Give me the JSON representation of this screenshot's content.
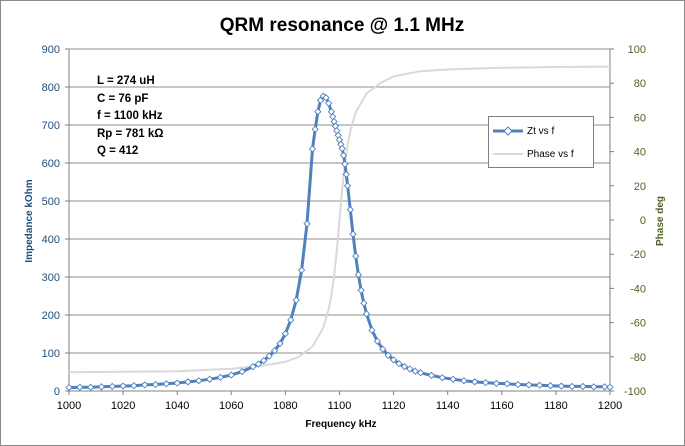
{
  "chart_data": {
    "type": "line",
    "title": "QRM resonance @ 1.1 MHz",
    "xlabel": "Frequency  kHz",
    "ylabel": "Impedance  kOhm",
    "y2label": "Phase  deg",
    "xlim": [
      1000,
      1200
    ],
    "ylim": [
      0,
      900
    ],
    "y2lim": [
      -100,
      100
    ],
    "x_ticks": [
      1000,
      1020,
      1040,
      1060,
      1080,
      1100,
      1120,
      1140,
      1160,
      1180,
      1200
    ],
    "y_ticks": [
      0,
      100,
      200,
      300,
      400,
      500,
      600,
      700,
      800,
      900
    ],
    "y2_ticks": [
      -100,
      -80,
      -60,
      -40,
      -20,
      0,
      20,
      40,
      60,
      80,
      100
    ],
    "grid": "horizontal",
    "legend_position": "right",
    "annotation_lines": [
      "L = 274  uH",
      "C = 76  pF",
      "f =  1100  kHz",
      "Rp = 781  kΩ",
      "Q = 412"
    ],
    "series": [
      {
        "name": "Zt vs f",
        "axis": "left",
        "color": "#4f81bd",
        "marker": "diamond",
        "x": [
          1000,
          1004,
          1008,
          1012,
          1016,
          1020,
          1024,
          1028,
          1032,
          1036,
          1040,
          1044,
          1048,
          1052,
          1056,
          1060,
          1064,
          1068,
          1070,
          1072,
          1074,
          1076,
          1078,
          1080,
          1082,
          1084,
          1086,
          1088,
          1090,
          1091,
          1092,
          1093,
          1094,
          1095,
          1096,
          1097,
          1097.5,
          1098,
          1098.5,
          1099,
          1099.5,
          1100,
          1100.5,
          1101,
          1101.5,
          1102,
          1102.5,
          1103,
          1104,
          1105,
          1106,
          1107,
          1108,
          1109,
          1110,
          1112,
          1114,
          1116,
          1118,
          1120,
          1122,
          1124,
          1126,
          1128,
          1130,
          1134,
          1138,
          1142,
          1146,
          1150,
          1154,
          1158,
          1162,
          1166,
          1170,
          1174,
          1178,
          1182,
          1186,
          1190,
          1194,
          1198,
          1200
        ],
        "y": [
          9,
          10,
          10,
          11,
          12,
          13,
          14,
          16,
          17,
          19,
          21,
          24,
          27,
          31,
          36,
          42,
          51,
          64,
          71,
          80,
          92,
          106,
          125,
          151,
          187,
          239,
          318,
          440,
          637,
          689,
          735,
          765,
          776,
          772,
          757,
          735,
          722,
          709,
          697,
          685,
          673,
          661,
          649,
          638,
          620,
          597,
          570,
          540,
          477,
          413,
          355,
          306,
          265,
          231,
          203,
          160,
          131,
          110,
          94,
          82,
          72,
          64,
          58,
          52,
          48,
          41,
          35,
          31,
          27,
          24,
          22,
          20,
          19,
          17,
          16,
          15,
          14,
          13,
          12,
          12,
          11,
          11,
          10
        ]
      },
      {
        "name": "Phase vs f",
        "axis": "right",
        "color": "#d9d9d9",
        "marker": "none",
        "x": [
          1000,
          1020,
          1040,
          1060,
          1070,
          1080,
          1085,
          1090,
          1094,
          1096,
          1097,
          1098,
          1099,
          1100,
          1101,
          1102,
          1103,
          1104,
          1106,
          1110,
          1115,
          1120,
          1130,
          1140,
          1160,
          1180,
          1200
        ],
        "y": [
          -89,
          -88.8,
          -88.4,
          -87,
          -85.5,
          -83,
          -80,
          -74,
          -63,
          -52,
          -44,
          -33,
          -18,
          0,
          18,
          33,
          44,
          52,
          63,
          74,
          80,
          84,
          87,
          88,
          89,
          89.5,
          89.7
        ]
      }
    ]
  }
}
